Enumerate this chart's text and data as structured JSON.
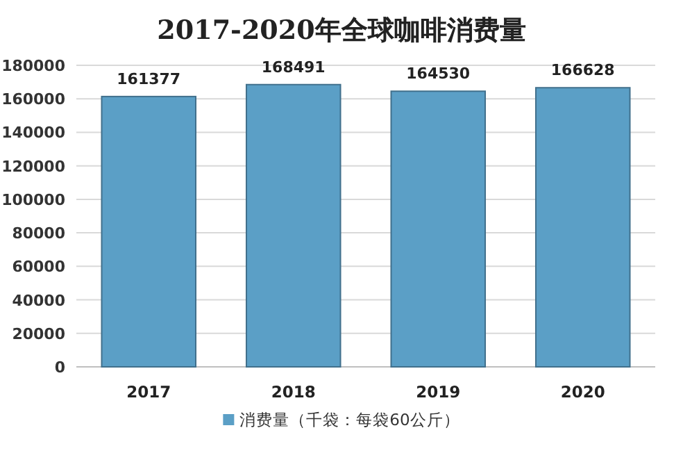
{
  "chart_data": {
    "type": "bar",
    "title": "2017-2020年全球咖啡消费量",
    "categories": [
      "2017",
      "2018",
      "2019",
      "2020"
    ],
    "series": [
      {
        "name": "消费量（千袋：每袋60公斤）",
        "color": "#5b9fc6",
        "values": [
          161377,
          168491,
          164530,
          166628
        ]
      }
    ],
    "ylim": [
      0,
      180000
    ],
    "yticks": [
      0,
      20000,
      40000,
      60000,
      80000,
      100000,
      120000,
      140000,
      160000,
      180000
    ],
    "grid": "y",
    "legend": "bottom",
    "data_labels": true
  }
}
